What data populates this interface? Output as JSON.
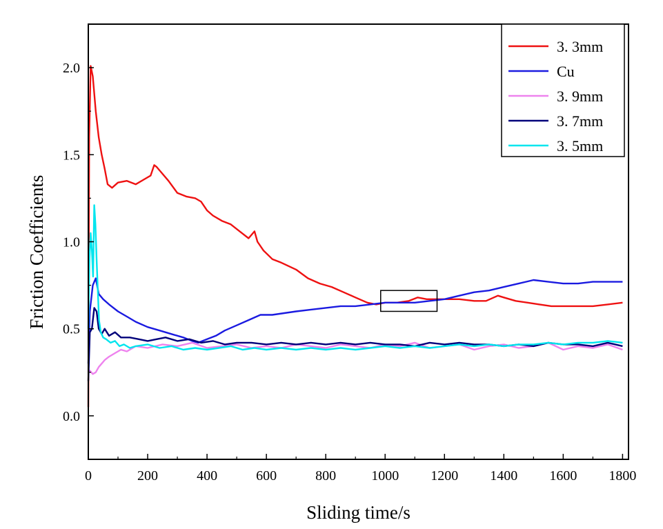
{
  "chart_data": {
    "type": "line",
    "xlabel": "Sliding time/s",
    "ylabel": "Friction Coefficients",
    "xlim": [
      0,
      1820
    ],
    "ylim": [
      -0.25,
      2.25
    ],
    "x_ticks": [
      0,
      200,
      400,
      600,
      800,
      1000,
      1200,
      1400,
      1600,
      1800
    ],
    "x_tick_labels": [
      "0",
      "200",
      "400",
      "600",
      "800",
      "1000",
      "1200",
      "1400",
      "1600",
      "1800"
    ],
    "y_ticks": [
      0.0,
      0.5,
      1.0,
      1.5,
      2.0
    ],
    "y_tick_labels": [
      "0.0",
      "0.5",
      "1.0",
      "1.5",
      "2.0"
    ],
    "grid": false,
    "legend_position": "top-right",
    "annotation_box": {
      "x": [
        985,
        1175
      ],
      "y": [
        0.6,
        0.72
      ]
    },
    "series": [
      {
        "name": "3. 3mm",
        "color": "#ee1111",
        "x": [
          0,
          3,
          8,
          15,
          25,
          35,
          45,
          55,
          65,
          80,
          100,
          130,
          160,
          190,
          210,
          222,
          230,
          245,
          270,
          300,
          330,
          360,
          380,
          400,
          420,
          450,
          480,
          510,
          540,
          560,
          570,
          590,
          620,
          650,
          700,
          740,
          780,
          820,
          860,
          900,
          940,
          970,
          1000,
          1040,
          1080,
          1110,
          1140,
          1170,
          1200,
          1250,
          1300,
          1340,
          1380,
          1400,
          1440,
          1480,
          1520,
          1560,
          1600,
          1650,
          1700,
          1750,
          1800
        ],
        "y": [
          0.05,
          1.6,
          2.01,
          1.95,
          1.75,
          1.6,
          1.5,
          1.42,
          1.33,
          1.31,
          1.34,
          1.35,
          1.33,
          1.36,
          1.38,
          1.44,
          1.43,
          1.4,
          1.35,
          1.28,
          1.26,
          1.25,
          1.23,
          1.18,
          1.15,
          1.12,
          1.1,
          1.06,
          1.02,
          1.06,
          1.0,
          0.95,
          0.9,
          0.88,
          0.84,
          0.79,
          0.76,
          0.74,
          0.71,
          0.68,
          0.65,
          0.64,
          0.65,
          0.65,
          0.66,
          0.68,
          0.67,
          0.67,
          0.67,
          0.67,
          0.66,
          0.66,
          0.69,
          0.68,
          0.66,
          0.65,
          0.64,
          0.63,
          0.63,
          0.63,
          0.63,
          0.64,
          0.65
        ]
      },
      {
        "name": "Cu",
        "color": "#1a1ae0",
        "x": [
          0,
          5,
          15,
          25,
          35,
          50,
          70,
          100,
          130,
          160,
          200,
          240,
          280,
          320,
          350,
          370,
          400,
          430,
          460,
          500,
          540,
          580,
          620,
          660,
          700,
          750,
          800,
          850,
          900,
          950,
          1000,
          1050,
          1100,
          1150,
          1200,
          1250,
          1300,
          1350,
          1400,
          1450,
          1500,
          1550,
          1600,
          1650,
          1700,
          1750,
          1800
        ],
        "y": [
          0.3,
          0.6,
          0.75,
          0.79,
          0.7,
          0.67,
          0.64,
          0.6,
          0.57,
          0.54,
          0.51,
          0.49,
          0.47,
          0.45,
          0.43,
          0.42,
          0.44,
          0.46,
          0.49,
          0.52,
          0.55,
          0.58,
          0.58,
          0.59,
          0.6,
          0.61,
          0.62,
          0.63,
          0.63,
          0.64,
          0.65,
          0.65,
          0.65,
          0.66,
          0.67,
          0.69,
          0.71,
          0.72,
          0.74,
          0.76,
          0.78,
          0.77,
          0.76,
          0.76,
          0.77,
          0.77,
          0.77
        ]
      },
      {
        "name": "3. 9mm",
        "color": "#ee82ee",
        "x": [
          0,
          5,
          15,
          25,
          35,
          45,
          55,
          70,
          90,
          110,
          130,
          160,
          200,
          250,
          300,
          350,
          400,
          450,
          500,
          550,
          600,
          650,
          700,
          750,
          800,
          850,
          900,
          950,
          1000,
          1050,
          1100,
          1150,
          1200,
          1250,
          1300,
          1350,
          1400,
          1450,
          1500,
          1550,
          1600,
          1650,
          1700,
          1750,
          1800
        ],
        "y": [
          0.25,
          0.26,
          0.24,
          0.25,
          0.28,
          0.3,
          0.32,
          0.34,
          0.36,
          0.38,
          0.37,
          0.4,
          0.39,
          0.41,
          0.4,
          0.42,
          0.39,
          0.4,
          0.41,
          0.39,
          0.4,
          0.39,
          0.41,
          0.4,
          0.39,
          0.41,
          0.4,
          0.39,
          0.41,
          0.4,
          0.42,
          0.39,
          0.4,
          0.41,
          0.38,
          0.4,
          0.41,
          0.39,
          0.4,
          0.42,
          0.38,
          0.4,
          0.39,
          0.41,
          0.38
        ]
      },
      {
        "name": "3. 7mm",
        "color": "#00007a",
        "x": [
          0,
          5,
          12,
          20,
          28,
          35,
          45,
          55,
          70,
          90,
          110,
          140,
          170,
          200,
          230,
          260,
          300,
          340,
          380,
          420,
          460,
          500,
          550,
          600,
          650,
          700,
          750,
          800,
          850,
          900,
          950,
          1000,
          1050,
          1100,
          1150,
          1200,
          1250,
          1300,
          1350,
          1400,
          1450,
          1500,
          1550,
          1600,
          1650,
          1700,
          1750,
          1800
        ],
        "y": [
          0.2,
          0.48,
          0.5,
          0.62,
          0.6,
          0.5,
          0.47,
          0.5,
          0.46,
          0.48,
          0.45,
          0.45,
          0.44,
          0.43,
          0.44,
          0.45,
          0.43,
          0.44,
          0.42,
          0.43,
          0.41,
          0.42,
          0.42,
          0.41,
          0.42,
          0.41,
          0.42,
          0.41,
          0.42,
          0.41,
          0.42,
          0.41,
          0.41,
          0.4,
          0.42,
          0.41,
          0.42,
          0.41,
          0.41,
          0.4,
          0.41,
          0.4,
          0.42,
          0.41,
          0.41,
          0.4,
          0.42,
          0.4
        ]
      },
      {
        "name": "3. 5mm",
        "color": "#00e5ee",
        "x": [
          0,
          4,
          8,
          12,
          16,
          20,
          24,
          28,
          32,
          36,
          42,
          50,
          60,
          75,
          90,
          105,
          120,
          140,
          160,
          200,
          240,
          280,
          320,
          360,
          400,
          440,
          480,
          520,
          560,
          600,
          650,
          700,
          750,
          800,
          850,
          900,
          950,
          1000,
          1050,
          1100,
          1150,
          1200,
          1250,
          1300,
          1350,
          1400,
          1450,
          1500,
          1550,
          1600,
          1650,
          1700,
          1750,
          1800
        ],
        "y": [
          0.5,
          0.9,
          1.05,
          0.95,
          0.8,
          1.21,
          1.1,
          0.9,
          0.72,
          0.55,
          0.48,
          0.45,
          0.44,
          0.42,
          0.43,
          0.4,
          0.41,
          0.39,
          0.4,
          0.41,
          0.39,
          0.4,
          0.38,
          0.39,
          0.38,
          0.39,
          0.4,
          0.38,
          0.39,
          0.38,
          0.39,
          0.38,
          0.39,
          0.38,
          0.39,
          0.38,
          0.39,
          0.4,
          0.39,
          0.4,
          0.39,
          0.4,
          0.41,
          0.4,
          0.41,
          0.4,
          0.41,
          0.41,
          0.42,
          0.41,
          0.42,
          0.42,
          0.43,
          0.42
        ]
      }
    ]
  }
}
